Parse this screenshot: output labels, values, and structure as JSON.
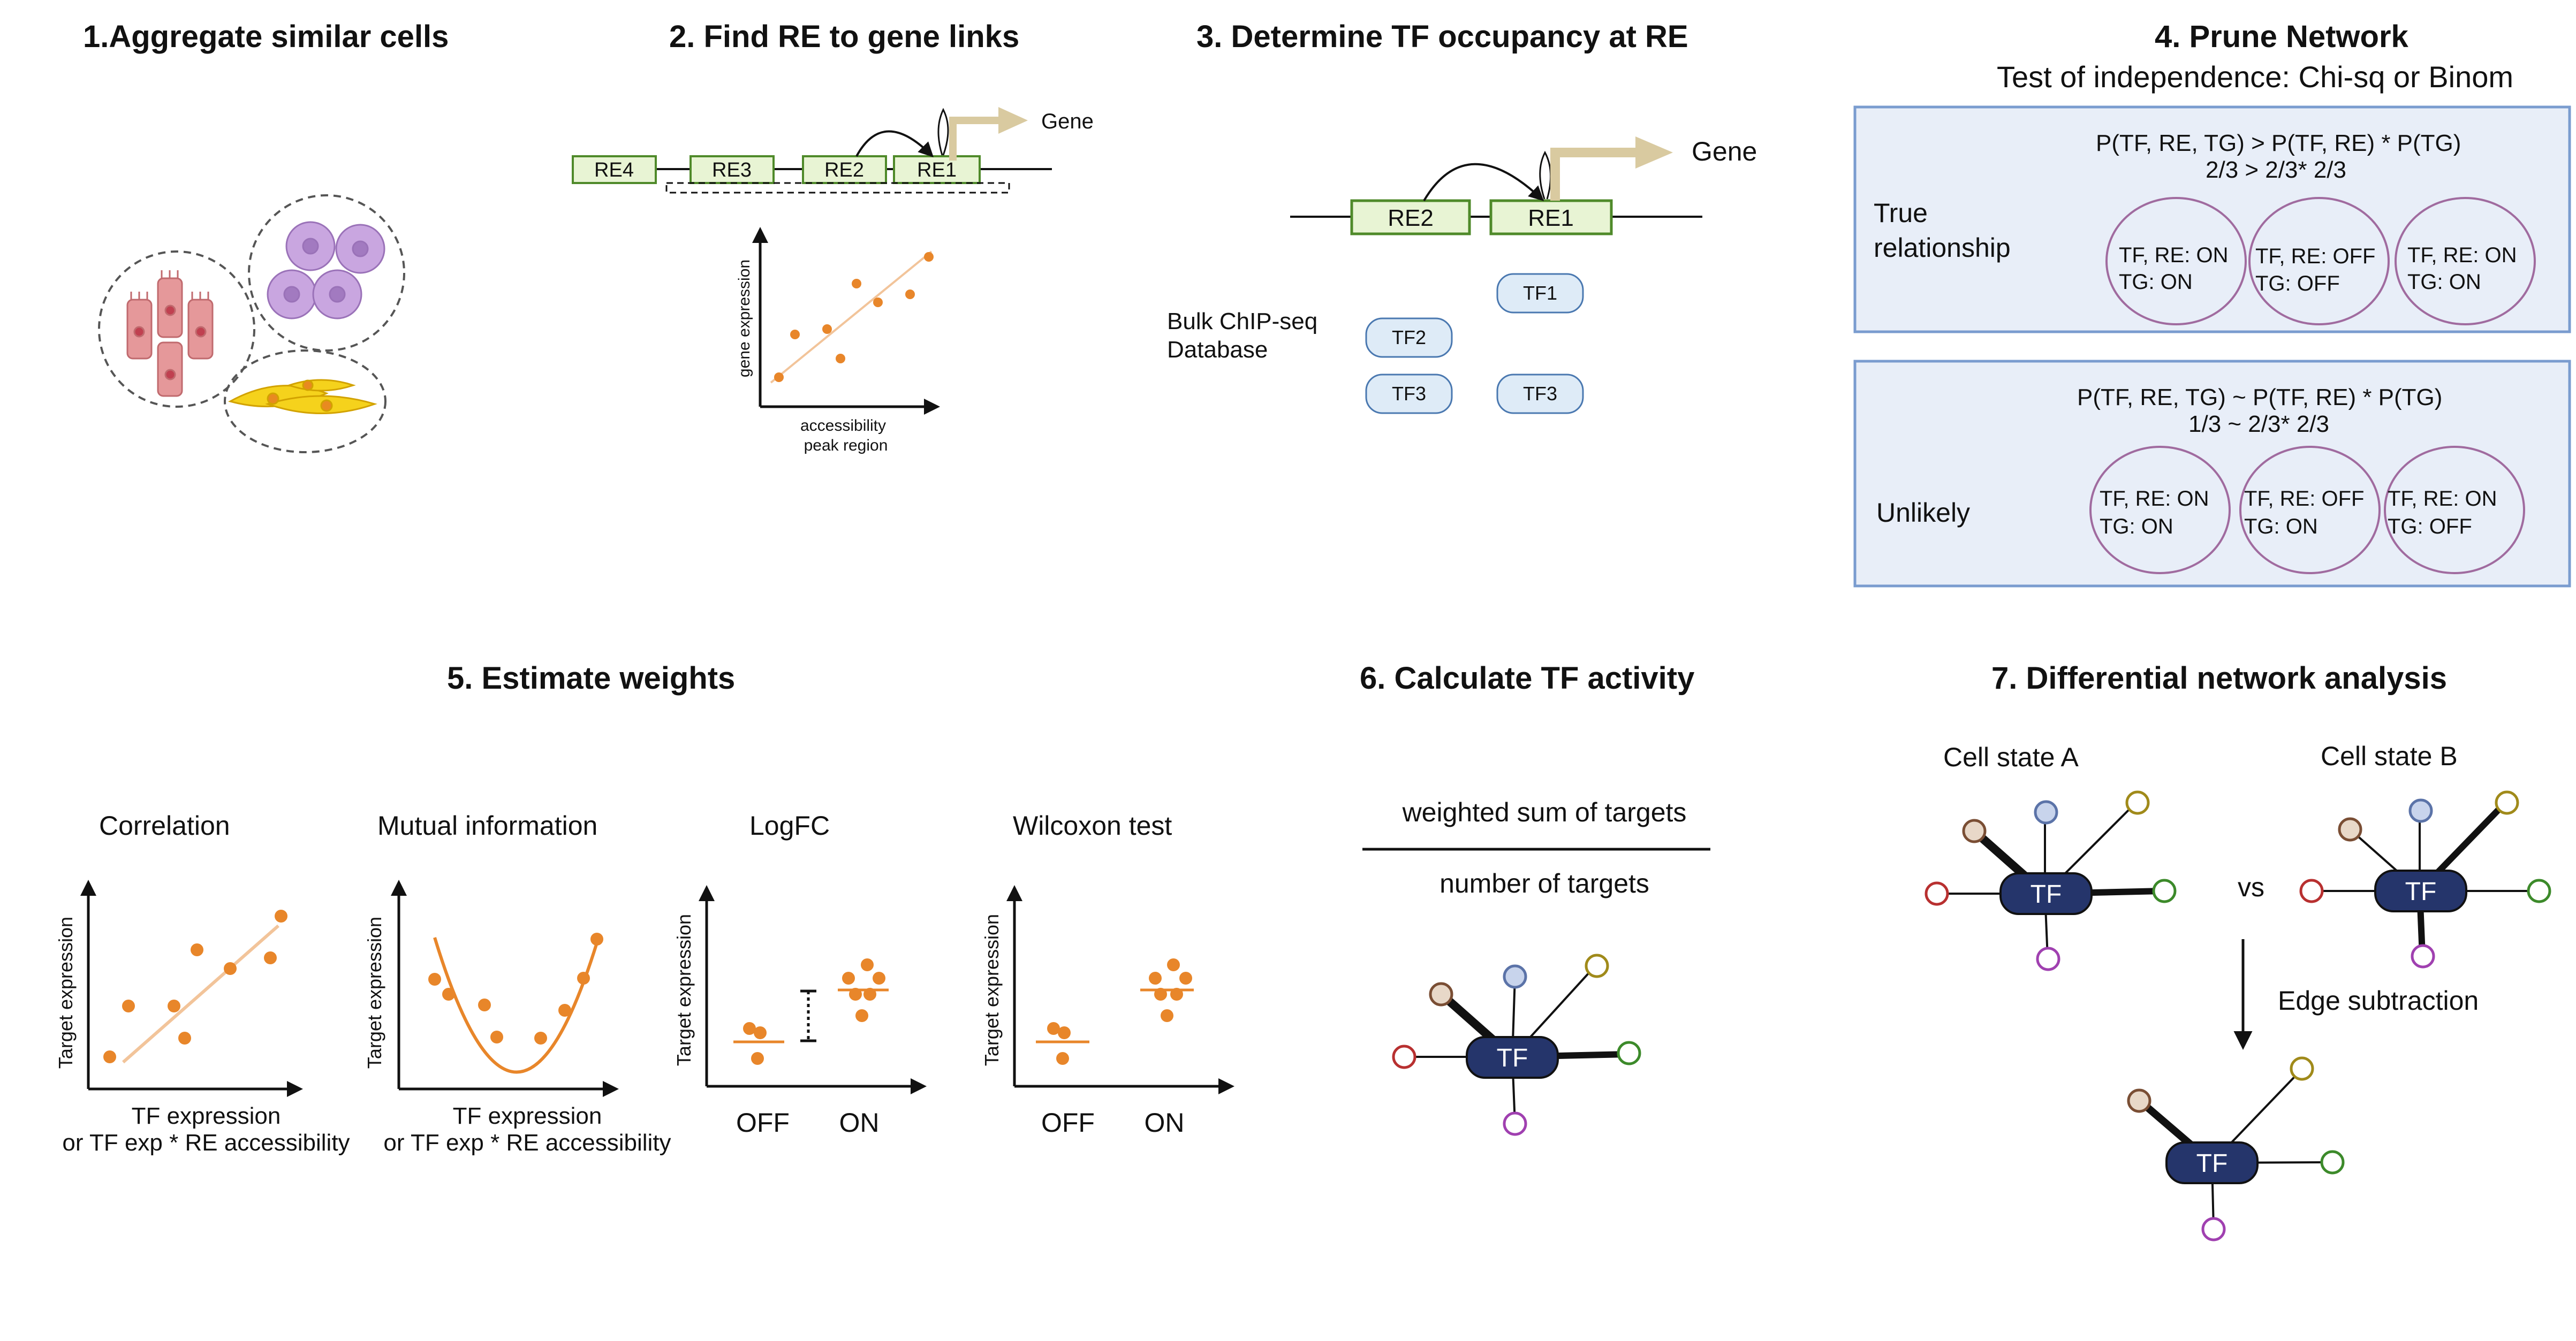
{
  "colors": {
    "orange": "#e8862a",
    "re_fill": "#e8f4d4",
    "re_stroke": "#4f8a2a",
    "tf_fill": "#25356b",
    "panel_fill": "#e8eef8",
    "panel_stroke": "#7a9ccf",
    "circle_stroke": "#a06b9f",
    "chip_fill": "#deebf7",
    "gene_arrow": "#d9caa0"
  },
  "panel1": {
    "title": "1.Aggregate similar cells"
  },
  "panel2": {
    "title": "2. Find RE to gene links",
    "gene": "Gene",
    "re_labels": [
      "RE4",
      "RE3",
      "RE2",
      "RE1"
    ],
    "y_axis": "gene expression",
    "x_axis_line1": "accessibility",
    "x_axis_line2": "peak region"
  },
  "panel3": {
    "title": "3. Determine TF occupancy at RE",
    "gene": "Gene",
    "re_labels": [
      "RE2",
      "RE1"
    ],
    "db_line1": "Bulk ChIP-seq",
    "db_line2": "Database",
    "tf_chips": [
      "TF1",
      "TF2",
      "TF3",
      "TF3"
    ]
  },
  "panel4": {
    "title": "4. Prune Network",
    "subtitle": "Test of independence: Chi-sq or Binom",
    "true_box": {
      "eq_line1": "P(TF, RE, TG)  > P(TF, RE) * P(TG)",
      "eq_line2": "2/3 > 2/3* 2/3",
      "label_line1": "True",
      "label_line2": "relationship",
      "circles": [
        {
          "line1": "TF, RE: ON",
          "line2": "TG: ON"
        },
        {
          "line1": "TF, RE: OFF",
          "line2": "TG: OFF"
        },
        {
          "line1": "TF, RE: ON",
          "line2": "TG: ON"
        }
      ]
    },
    "unlikely_box": {
      "eq_line1": "P(TF, RE, TG)  ~ P(TF, RE) * P(TG)",
      "eq_line2": "1/3 ~ 2/3* 2/3",
      "label": "Unlikely",
      "circles": [
        {
          "line1": "TF, RE: ON",
          "line2": "TG: ON"
        },
        {
          "line1": "TF, RE: OFF",
          "line2": "TG: ON"
        },
        {
          "line1": "TF, RE: ON",
          "line2": "TG: OFF"
        }
      ]
    }
  },
  "panel5": {
    "title": "5. Estimate weights",
    "correlation": "Correlation",
    "mutual_information": "Mutual information",
    "logfc": "LogFC",
    "wilcoxon": "Wilcoxon test",
    "y_axis": "Target expression",
    "x_axis_line1": "TF expression",
    "x_axis_line2": "or TF exp * RE accessibility",
    "off": "OFF",
    "on": "ON"
  },
  "panel6": {
    "title": "6. Calculate TF activity",
    "numerator": "weighted sum of targets",
    "denominator": "number of targets",
    "tf": "TF"
  },
  "panel7": {
    "title": "7. Differential network analysis",
    "state_a": "Cell state A",
    "state_b": "Cell state B",
    "vs": "vs",
    "edge_subtraction": "Edge subtraction",
    "tf": "TF"
  }
}
